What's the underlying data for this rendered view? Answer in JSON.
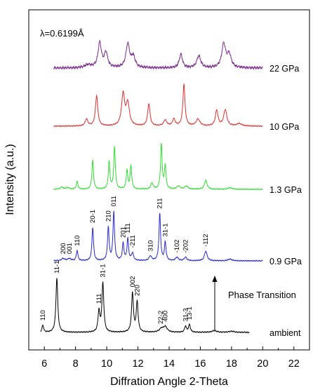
{
  "chart_data": {
    "type": "line",
    "title": "",
    "annotation_wavelength": "λ=0.6199Å",
    "xlabel": "Diffration Angle 2-Theta",
    "ylabel": "Intensity (a.u.)",
    "xlim": [
      5,
      23
    ],
    "x_ticks": [
      6,
      8,
      10,
      12,
      14,
      16,
      18,
      20,
      22
    ],
    "grid": false,
    "legend": "none",
    "phase_transition_label": "Phase Transition",
    "series": [
      {
        "name": "ambient",
        "color": "#000000",
        "offset": 0,
        "peaks": [
          [
            5.9,
            0.13,
            0.06
          ],
          [
            6.8,
            1.0,
            0.07
          ],
          [
            9.5,
            0.38,
            0.07
          ],
          [
            9.75,
            0.9,
            0.07
          ],
          [
            11.65,
            0.72,
            0.07
          ],
          [
            11.95,
            0.55,
            0.07
          ],
          [
            13.5,
            0.06,
            0.15
          ],
          [
            13.75,
            0.1,
            0.15
          ],
          [
            15.05,
            0.11,
            0.07
          ],
          [
            15.3,
            0.14,
            0.07
          ],
          [
            16.9,
            0.03,
            0.2
          ],
          [
            18.0,
            0.02,
            0.2
          ]
        ]
      },
      {
        "name": "0.9 GPa",
        "color": "#2828d2",
        "offset": 1,
        "peaks": [
          [
            7.2,
            0.04,
            0.12
          ],
          [
            7.6,
            0.04,
            0.12
          ],
          [
            8.1,
            0.18,
            0.06
          ],
          [
            9.1,
            0.58,
            0.06
          ],
          [
            10.1,
            0.58,
            0.06
          ],
          [
            10.45,
            0.85,
            0.06
          ],
          [
            11.05,
            0.3,
            0.06
          ],
          [
            11.35,
            0.38,
            0.06
          ],
          [
            11.65,
            0.13,
            0.08
          ],
          [
            12.8,
            0.08,
            0.1
          ],
          [
            13.4,
            0.82,
            0.06
          ],
          [
            13.75,
            0.32,
            0.06
          ],
          [
            14.5,
            0.06,
            0.1
          ],
          [
            15.05,
            0.06,
            0.1
          ],
          [
            16.35,
            0.17,
            0.1
          ],
          [
            17.9,
            0.03,
            0.15
          ]
        ]
      },
      {
        "name": "1.3 GPa",
        "color": "#33dd33",
        "offset": 2,
        "peaks": [
          [
            7.1,
            0.04,
            0.12
          ],
          [
            7.5,
            0.03,
            0.12
          ],
          [
            8.1,
            0.15,
            0.06
          ],
          [
            9.1,
            0.55,
            0.06
          ],
          [
            10.15,
            0.52,
            0.06
          ],
          [
            10.5,
            0.8,
            0.06
          ],
          [
            11.3,
            0.35,
            0.06
          ],
          [
            11.55,
            0.45,
            0.06
          ],
          [
            12.9,
            0.12,
            0.08
          ],
          [
            13.5,
            0.85,
            0.06
          ],
          [
            13.75,
            0.45,
            0.06
          ],
          [
            14.6,
            0.06,
            0.12
          ],
          [
            15.1,
            0.06,
            0.12
          ],
          [
            16.35,
            0.17,
            0.1
          ],
          [
            17.9,
            0.03,
            0.15
          ]
        ]
      },
      {
        "name": "10 GPa",
        "color": "#e03030",
        "offset": 3,
        "peaks": [
          [
            8.7,
            0.14,
            0.1
          ],
          [
            9.35,
            0.62,
            0.09
          ],
          [
            11.05,
            0.65,
            0.12
          ],
          [
            11.35,
            0.45,
            0.12
          ],
          [
            12.7,
            0.45,
            0.09
          ],
          [
            13.75,
            0.12,
            0.12
          ],
          [
            14.3,
            0.14,
            0.1
          ],
          [
            14.95,
            0.85,
            0.08
          ],
          [
            15.85,
            0.14,
            0.15
          ],
          [
            17.05,
            0.32,
            0.1
          ],
          [
            17.6,
            0.33,
            0.12
          ],
          [
            18.5,
            0.05,
            0.2
          ]
        ]
      },
      {
        "name": "22 GPa",
        "color": "#7a2a8c",
        "offset": 4,
        "peaks": [
          [
            8.8,
            0.08,
            0.25
          ],
          [
            9.55,
            0.68,
            0.13
          ],
          [
            9.95,
            0.4,
            0.13
          ],
          [
            11.35,
            0.65,
            0.14
          ],
          [
            11.7,
            0.3,
            0.14
          ],
          [
            14.75,
            0.38,
            0.12
          ],
          [
            15.9,
            0.33,
            0.15
          ],
          [
            17.5,
            0.65,
            0.15
          ],
          [
            17.85,
            0.35,
            0.15
          ]
        ]
      }
    ],
    "peak_labels": [
      {
        "series": "ambient",
        "x": 5.9,
        "text": "110"
      },
      {
        "series": "ambient",
        "x": 6.8,
        "text": "11-1"
      },
      {
        "series": "ambient",
        "x": 9.5,
        "text": "111"
      },
      {
        "series": "ambient",
        "x": 9.75,
        "text": "31-1"
      },
      {
        "series": "ambient",
        "x": 11.65,
        "text": "002"
      },
      {
        "series": "ambient",
        "x": 11.95,
        "text": "220"
      },
      {
        "series": "ambient",
        "x": 13.45,
        "text": "22-2"
      },
      {
        "series": "ambient",
        "x": 13.75,
        "text": "400"
      },
      {
        "series": "ambient",
        "x": 15.05,
        "text": "31-3"
      },
      {
        "series": "ambient",
        "x": 15.3,
        "text": "13-1"
      },
      {
        "series": "0.9 GPa",
        "x": 7.2,
        "text": "200"
      },
      {
        "series": "0.9 GPa",
        "x": 7.6,
        "text": "001"
      },
      {
        "series": "0.9 GPa",
        "x": 8.1,
        "text": "110"
      },
      {
        "series": "0.9 GPa",
        "x": 9.1,
        "text": "20-1"
      },
      {
        "series": "0.9 GPa",
        "x": 10.1,
        "text": "210"
      },
      {
        "series": "0.9 GPa",
        "x": 10.45,
        "text": "011"
      },
      {
        "series": "0.9 GPa",
        "x": 11.05,
        "text": "201"
      },
      {
        "series": "0.9 GPa",
        "x": 11.35,
        "text": "111"
      },
      {
        "series": "0.9 GPa",
        "x": 11.65,
        "text": "-211"
      },
      {
        "series": "0.9 GPa",
        "x": 12.8,
        "text": "310"
      },
      {
        "series": "0.9 GPa",
        "x": 13.4,
        "text": "211"
      },
      {
        "series": "0.9 GPa",
        "x": 13.75,
        "text": "31-1"
      },
      {
        "series": "0.9 GPa",
        "x": 14.5,
        "text": "-102"
      },
      {
        "series": "0.9 GPa",
        "x": 15.05,
        "text": "-202"
      },
      {
        "series": "0.9 GPa",
        "x": 16.35,
        "text": "-112"
      }
    ]
  }
}
